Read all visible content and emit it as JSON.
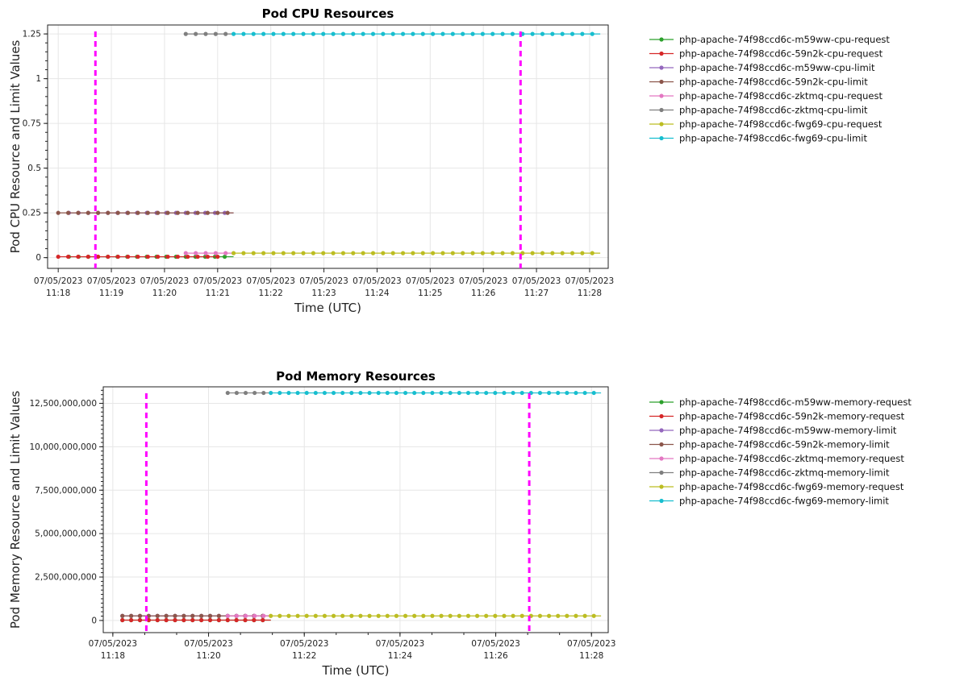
{
  "chart_data": [
    {
      "type": "line",
      "title": "Pod CPU Resources",
      "xlabel": "Time (UTC)",
      "ylabel": "Pod CPU Resource and Limit Values",
      "x_ticks": [
        {
          "date": "07/05/2023",
          "time": "11:18",
          "t": 0
        },
        {
          "date": "07/05/2023",
          "time": "11:19",
          "t": 1
        },
        {
          "date": "07/05/2023",
          "time": "11:20",
          "t": 2
        },
        {
          "date": "07/05/2023",
          "time": "11:21",
          "t": 3
        },
        {
          "date": "07/05/2023",
          "time": "11:22",
          "t": 4
        },
        {
          "date": "07/05/2023",
          "time": "11:23",
          "t": 5
        },
        {
          "date": "07/05/2023",
          "time": "11:24",
          "t": 6
        },
        {
          "date": "07/05/2023",
          "time": "11:25",
          "t": 7
        },
        {
          "date": "07/05/2023",
          "time": "11:26",
          "t": 8
        },
        {
          "date": "07/05/2023",
          "time": "11:27",
          "t": 9
        },
        {
          "date": "07/05/2023",
          "time": "11:28",
          "t": 10
        }
      ],
      "xlim": [
        -0.2,
        10.35
      ],
      "y_ticks": [
        {
          "label": "0",
          "v": 0
        },
        {
          "label": "0.25",
          "v": 0.25
        },
        {
          "label": "0.5",
          "v": 0.5
        },
        {
          "label": "0.75",
          "v": 0.75
        },
        {
          "label": "1",
          "v": 1
        },
        {
          "label": "1.25",
          "v": 1.25
        }
      ],
      "ylim": [
        -0.06,
        1.3
      ],
      "grid": true,
      "legend_position": "right",
      "vlines": [
        {
          "t": 0.7,
          "color": "#ff00ff"
        },
        {
          "t": 8.7,
          "color": "#ff00ff"
        }
      ],
      "series": [
        {
          "name": "php-apache-74f98ccd6c-m59ww-cpu-request",
          "color": "#2ca02c",
          "start": 0.2,
          "end": 3.3,
          "value": 0.005,
          "step": 0.1833
        },
        {
          "name": "php-apache-74f98ccd6c-59n2k-cpu-request",
          "color": "#d62728",
          "start": 0,
          "end": 3.0,
          "value": 0.005,
          "step": 0.1875
        },
        {
          "name": "php-apache-74f98ccd6c-m59ww-cpu-limit",
          "color": "#9467bd",
          "start": 0.2,
          "end": 3.3,
          "value": 0.25,
          "step": 0.1833
        },
        {
          "name": "php-apache-74f98ccd6c-59n2k-cpu-limit",
          "color": "#8c564b",
          "start": 0,
          "end": 3.3,
          "value": 0.25,
          "step": 0.1875
        },
        {
          "name": "php-apache-74f98ccd6c-zktmq-cpu-request",
          "color": "#e377c2",
          "start": 2.4,
          "end": 3.3,
          "value": 0.025,
          "step": 0.1875
        },
        {
          "name": "php-apache-74f98ccd6c-zktmq-cpu-limit",
          "color": "#7f7f7f",
          "start": 2.4,
          "end": 3.3,
          "value": 1.25,
          "step": 0.1875
        },
        {
          "name": "php-apache-74f98ccd6c-fwg69-cpu-request",
          "color": "#bcbd22",
          "start": 3.3,
          "end": 10.2,
          "value": 0.025,
          "step": 0.1875
        },
        {
          "name": "php-apache-74f98ccd6c-fwg69-cpu-limit",
          "color": "#17becf",
          "start": 3.3,
          "end": 10.2,
          "value": 1.25,
          "step": 0.1875
        }
      ]
    },
    {
      "type": "line",
      "title": "Pod Memory Resources",
      "xlabel": "Time (UTC)",
      "ylabel": "Pod Memory Resource and Limit Values",
      "x_ticks": [
        {
          "date": "07/05/2023",
          "time": "11:18",
          "t": 0
        },
        {
          "date": "07/05/2023",
          "time": "11:20",
          "t": 2
        },
        {
          "date": "07/05/2023",
          "time": "11:22",
          "t": 4
        },
        {
          "date": "07/05/2023",
          "time": "11:24",
          "t": 6
        },
        {
          "date": "07/05/2023",
          "time": "11:26",
          "t": 8
        },
        {
          "date": "07/05/2023",
          "time": "11:28",
          "t": 10
        }
      ],
      "xlim": [
        -0.2,
        10.35
      ],
      "y_ticks": [
        {
          "label": "0",
          "v": 0
        },
        {
          "label": "2,500,000,000",
          "v": 2500000000
        },
        {
          "label": "5,000,000,000",
          "v": 5000000000
        },
        {
          "label": "7,500,000,000",
          "v": 7500000000
        },
        {
          "label": "10,000,000,000",
          "v": 10000000000
        },
        {
          "label": "12,500,000,000",
          "v": 12500000000
        }
      ],
      "ylim": [
        -700000000,
        13450000000
      ],
      "grid": true,
      "legend_position": "right",
      "vlines": [
        {
          "t": 0.7,
          "color": "#ff00ff"
        },
        {
          "t": 8.7,
          "color": "#ff00ff"
        }
      ],
      "series": [
        {
          "name": "php-apache-74f98ccd6c-m59ww-memory-request",
          "color": "#2ca02c",
          "start": 0.2,
          "end": 3.3,
          "value": 20000000,
          "step": 0.1833
        },
        {
          "name": "php-apache-74f98ccd6c-59n2k-memory-request",
          "color": "#d62728",
          "start": 0.2,
          "end": 3.3,
          "value": 20000000,
          "step": 0.1833
        },
        {
          "name": "php-apache-74f98ccd6c-m59ww-memory-limit",
          "color": "#9467bd",
          "start": 0.2,
          "end": 3.3,
          "value": 262000000,
          "step": 0.1833
        },
        {
          "name": "php-apache-74f98ccd6c-59n2k-memory-limit",
          "color": "#8c564b",
          "start": 0.2,
          "end": 3.3,
          "value": 262000000,
          "step": 0.1833
        },
        {
          "name": "php-apache-74f98ccd6c-zktmq-memory-request",
          "color": "#e377c2",
          "start": 2.4,
          "end": 3.3,
          "value": 262000000,
          "step": 0.1875
        },
        {
          "name": "php-apache-74f98ccd6c-zktmq-memory-limit",
          "color": "#7f7f7f",
          "start": 2.4,
          "end": 3.3,
          "value": 13100000000,
          "step": 0.1875
        },
        {
          "name": "php-apache-74f98ccd6c-fwg69-memory-request",
          "color": "#bcbd22",
          "start": 3.3,
          "end": 10.2,
          "value": 262000000,
          "step": 0.1875
        },
        {
          "name": "php-apache-74f98ccd6c-fwg69-memory-limit",
          "color": "#17becf",
          "start": 3.3,
          "end": 10.2,
          "value": 13100000000,
          "step": 0.1875
        }
      ]
    }
  ]
}
